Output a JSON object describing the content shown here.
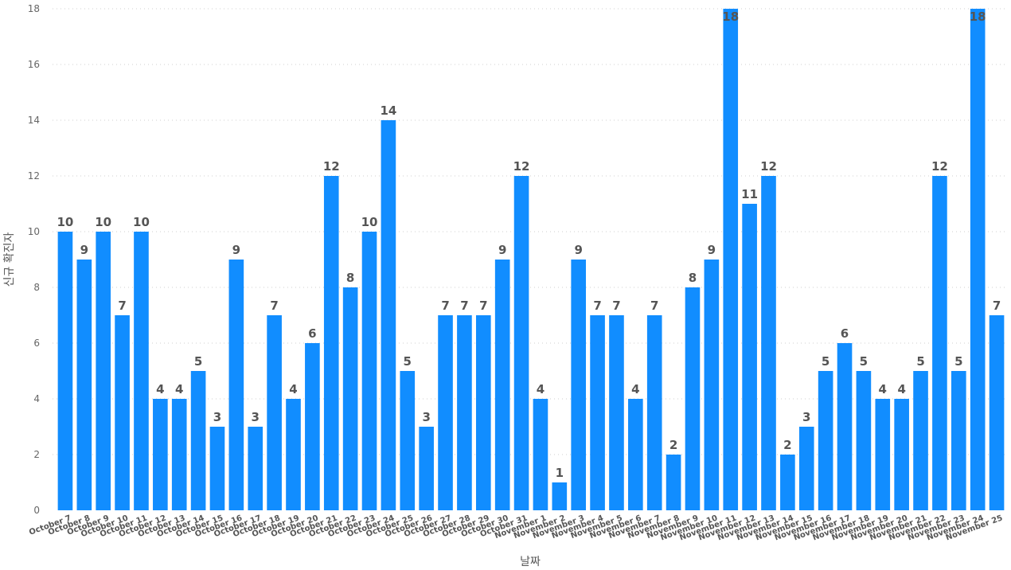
{
  "chart_data": {
    "type": "bar",
    "title": "",
    "xlabel": "날짜",
    "ylabel": "신규 확진자",
    "ylim": [
      0,
      18
    ],
    "yticks": [
      0,
      2,
      4,
      6,
      8,
      10,
      12,
      14,
      16,
      18
    ],
    "grid": true,
    "bar_color": "#118DFF",
    "categories": [
      "October 7",
      "October 8",
      "October 9",
      "October 10",
      "October 11",
      "October 12",
      "October 13",
      "October 14",
      "October 15",
      "October 16",
      "October 17",
      "October 18",
      "October 19",
      "October 20",
      "October 21",
      "October 22",
      "October 23",
      "October 24",
      "October 25",
      "October 26",
      "October 27",
      "October 28",
      "October 29",
      "October 30",
      "October 31",
      "November 1",
      "November 2",
      "November 3",
      "November 4",
      "November 5",
      "November 6",
      "November 7",
      "November 8",
      "November 9",
      "November 10",
      "November 11",
      "November 12",
      "November 13",
      "November 14",
      "November 15",
      "November 16",
      "November 17",
      "November 18",
      "November 19",
      "November 20",
      "November 21",
      "November 22",
      "November 23",
      "November 24",
      "November 25"
    ],
    "values": [
      10,
      9,
      10,
      7,
      10,
      4,
      4,
      5,
      3,
      9,
      3,
      7,
      4,
      6,
      12,
      8,
      10,
      14,
      5,
      3,
      7,
      7,
      7,
      9,
      12,
      4,
      1,
      9,
      7,
      7,
      4,
      7,
      2,
      8,
      9,
      18,
      11,
      12,
      2,
      3,
      5,
      6,
      5,
      4,
      4,
      5,
      12,
      5,
      18,
      7
    ]
  }
}
